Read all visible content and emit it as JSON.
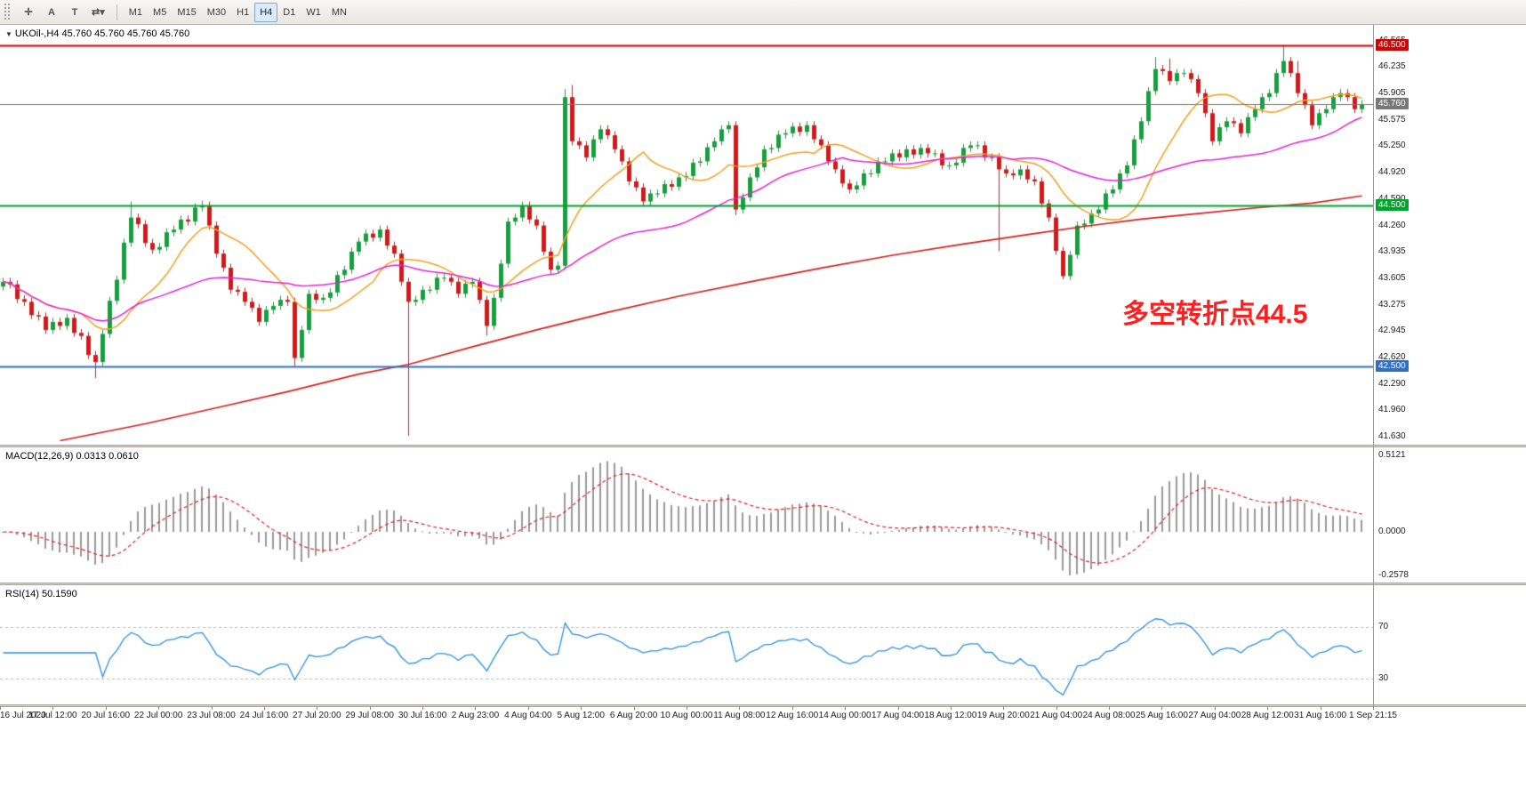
{
  "toolbar": {
    "tools": [
      {
        "name": "crosshair-tool",
        "glyph": "✛"
      },
      {
        "name": "text-tool",
        "glyph": "A"
      },
      {
        "name": "label-tool",
        "glyph": "T"
      },
      {
        "name": "shapes-tool",
        "glyph": "⇄▾"
      }
    ],
    "timeframes": [
      "M1",
      "M5",
      "M15",
      "M30",
      "H1",
      "H4",
      "D1",
      "W1",
      "MN"
    ],
    "active_timeframe": "H4"
  },
  "chart_data": {
    "type": "candlestick",
    "symbol": "UKOil-",
    "timeframe": "H4",
    "symbol_info": "UKOil-,H4  45.760 45.760 45.760 45.760",
    "annotation": {
      "text": "多空转折点44.5",
      "color": "#ff1f1f"
    },
    "price_axis": {
      "ticks": [
        "46.565",
        "46.235",
        "45.905",
        "45.575",
        "45.250",
        "44.920",
        "44.590",
        "44.260",
        "43.935",
        "43.605",
        "43.275",
        "42.945",
        "42.620",
        "42.290",
        "41.960",
        "41.630"
      ],
      "min": 41.52,
      "max": 46.75
    },
    "hlines": [
      {
        "price": 46.5,
        "color": "#d40000",
        "width": 2,
        "label": "46.500"
      },
      {
        "price": 45.76,
        "color": "#787878",
        "width": 1,
        "label": "45.760"
      },
      {
        "price": 44.5,
        "color": "#00a32e",
        "width": 2,
        "label": "44.500"
      },
      {
        "price": 42.5,
        "color": "#2f6fc8",
        "width": 2,
        "label": "42.500"
      }
    ],
    "main": {
      "bars": 192,
      "wiggle": 0.05,
      "colors": {
        "up": "#0da53a",
        "down": "#e11414"
      },
      "close_anchors": [
        [
          0,
          43.55
        ],
        [
          3,
          43.3
        ],
        [
          6,
          42.95
        ],
        [
          9,
          43.1
        ],
        [
          13,
          42.55
        ],
        [
          14,
          42.9
        ],
        [
          18,
          44.35
        ],
        [
          21,
          43.95
        ],
        [
          24,
          44.2
        ],
        [
          28,
          44.5
        ],
        [
          30,
          43.9
        ],
        [
          32,
          43.45
        ],
        [
          34,
          43.3
        ],
        [
          36,
          43.05
        ],
        [
          38,
          43.25
        ],
        [
          40,
          43.3
        ],
        [
          41,
          42.6
        ],
        [
          43,
          43.4
        ],
        [
          45,
          43.35
        ],
        [
          48,
          43.7
        ],
        [
          50,
          44.05
        ],
        [
          53,
          44.2
        ],
        [
          55,
          43.9
        ],
        [
          57,
          43.3
        ],
        [
          59,
          43.45
        ],
        [
          62,
          43.6
        ],
        [
          64,
          43.4
        ],
        [
          66,
          43.55
        ],
        [
          68,
          43.0
        ],
        [
          69,
          43.35
        ],
        [
          71,
          44.3
        ],
        [
          73,
          44.5
        ],
        [
          75,
          44.25
        ],
        [
          77,
          43.7
        ],
        [
          78,
          43.75
        ],
        [
          79,
          45.85
        ],
        [
          80,
          45.3
        ],
        [
          82,
          45.1
        ],
        [
          84,
          45.45
        ],
        [
          86,
          45.2
        ],
        [
          88,
          44.8
        ],
        [
          90,
          44.55
        ],
        [
          92,
          44.65
        ],
        [
          95,
          44.85
        ],
        [
          98,
          45.05
        ],
        [
          100,
          45.3
        ],
        [
          102,
          45.5
        ],
        [
          103,
          44.45
        ],
        [
          105,
          44.85
        ],
        [
          107,
          45.2
        ],
        [
          110,
          45.4
        ],
        [
          113,
          45.5
        ],
        [
          115,
          45.25
        ],
        [
          117,
          44.95
        ],
        [
          119,
          44.7
        ],
        [
          121,
          44.9
        ],
        [
          124,
          45.05
        ],
        [
          127,
          45.2
        ],
        [
          130,
          45.15
        ],
        [
          133,
          45.0
        ],
        [
          136,
          45.25
        ],
        [
          139,
          45.1
        ],
        [
          141,
          44.9
        ],
        [
          143,
          44.95
        ],
        [
          145,
          44.8
        ],
        [
          147,
          44.35
        ],
        [
          149,
          43.62
        ],
        [
          151,
          44.25
        ],
        [
          153,
          44.4
        ],
        [
          156,
          44.7
        ],
        [
          158,
          45.0
        ],
        [
          160,
          45.55
        ],
        [
          162,
          46.2
        ],
        [
          164,
          46.05
        ],
        [
          166,
          46.15
        ],
        [
          168,
          45.9
        ],
        [
          170,
          45.3
        ],
        [
          172,
          45.55
        ],
        [
          174,
          45.4
        ],
        [
          176,
          45.7
        ],
        [
          178,
          45.9
        ],
        [
          180,
          46.3
        ],
        [
          182,
          45.9
        ],
        [
          184,
          45.5
        ],
        [
          186,
          45.7
        ],
        [
          188,
          45.9
        ],
        [
          190,
          45.7
        ],
        [
          191,
          45.76
        ]
      ],
      "wick_overrides": {
        "13": {
          "low": 42.35
        },
        "18": {
          "high": 44.55
        },
        "28": {
          "high": 44.56
        },
        "41": {
          "low": 42.5
        },
        "57": {
          "low": 41.63
        },
        "68": {
          "low": 42.88
        },
        "79": {
          "high": 45.95
        },
        "80": {
          "high": 46.0
        },
        "103": {
          "low": 44.38
        },
        "140": {
          "low": 43.93
        },
        "149": {
          "low": 43.58
        },
        "162": {
          "high": 46.35
        },
        "164": {
          "high": 46.33
        },
        "180": {
          "high": 46.5
        },
        "182": {
          "high": 46.3
        }
      },
      "ma": [
        {
          "name": "ma-fast",
          "period": 12,
          "color": "#f2a020"
        },
        {
          "name": "ma-mid",
          "period": 40,
          "color": "#e322d6"
        }
      ],
      "slow_ma": {
        "name": "ma-slow",
        "color": "#d42020",
        "anchors": [
          [
            8,
            41.57
          ],
          [
            20,
            41.78
          ],
          [
            30,
            41.98
          ],
          [
            40,
            42.18
          ],
          [
            50,
            42.4
          ],
          [
            57,
            42.52
          ],
          [
            66,
            42.74
          ],
          [
            75,
            42.95
          ],
          [
            85,
            43.17
          ],
          [
            95,
            43.37
          ],
          [
            105,
            43.55
          ],
          [
            115,
            43.72
          ],
          [
            125,
            43.88
          ],
          [
            135,
            44.02
          ],
          [
            145,
            44.15
          ],
          [
            152,
            44.24
          ],
          [
            160,
            44.33
          ],
          [
            168,
            44.4
          ],
          [
            176,
            44.47
          ],
          [
            184,
            44.53
          ],
          [
            191,
            44.62
          ]
        ]
      }
    },
    "macd": {
      "label": "MACD(12,26,9) 0.0313 0.0610",
      "fast": 12,
      "slow": 26,
      "signal": 9,
      "axis_top": "0.5121",
      "axis_zero": "0.0000",
      "axis_bottom": "-0.2578",
      "hist_color": "#9a9a9a",
      "signal_color": "#e02020"
    },
    "rsi": {
      "label": "RSI(14) 50.1590",
      "period": 14,
      "levels": [
        "70",
        "30"
      ],
      "color": "#2a8fe0"
    },
    "time_axis": [
      "16 Jul 2020",
      "17 Jul 12:00",
      "20 Jul 16:00",
      "22 Jul 00:00",
      "23 Jul 08:00",
      "24 Jul 16:00",
      "27 Jul 20:00",
      "29 Jul 08:00",
      "30 Jul 16:00",
      "2 Aug 23:00",
      "4 Aug 04:00",
      "5 Aug 12:00",
      "6 Aug 20:00",
      "10 Aug 00:00",
      "11 Aug 08:00",
      "12 Aug 16:00",
      "14 Aug 00:00",
      "17 Aug 04:00",
      "18 Aug 12:00",
      "19 Aug 20:00",
      "21 Aug 04:00",
      "24 Aug 08:00",
      "25 Aug 16:00",
      "27 Aug 04:00",
      "28 Aug 12:00",
      "31 Aug 16:00",
      "1 Sep 21:15"
    ]
  }
}
